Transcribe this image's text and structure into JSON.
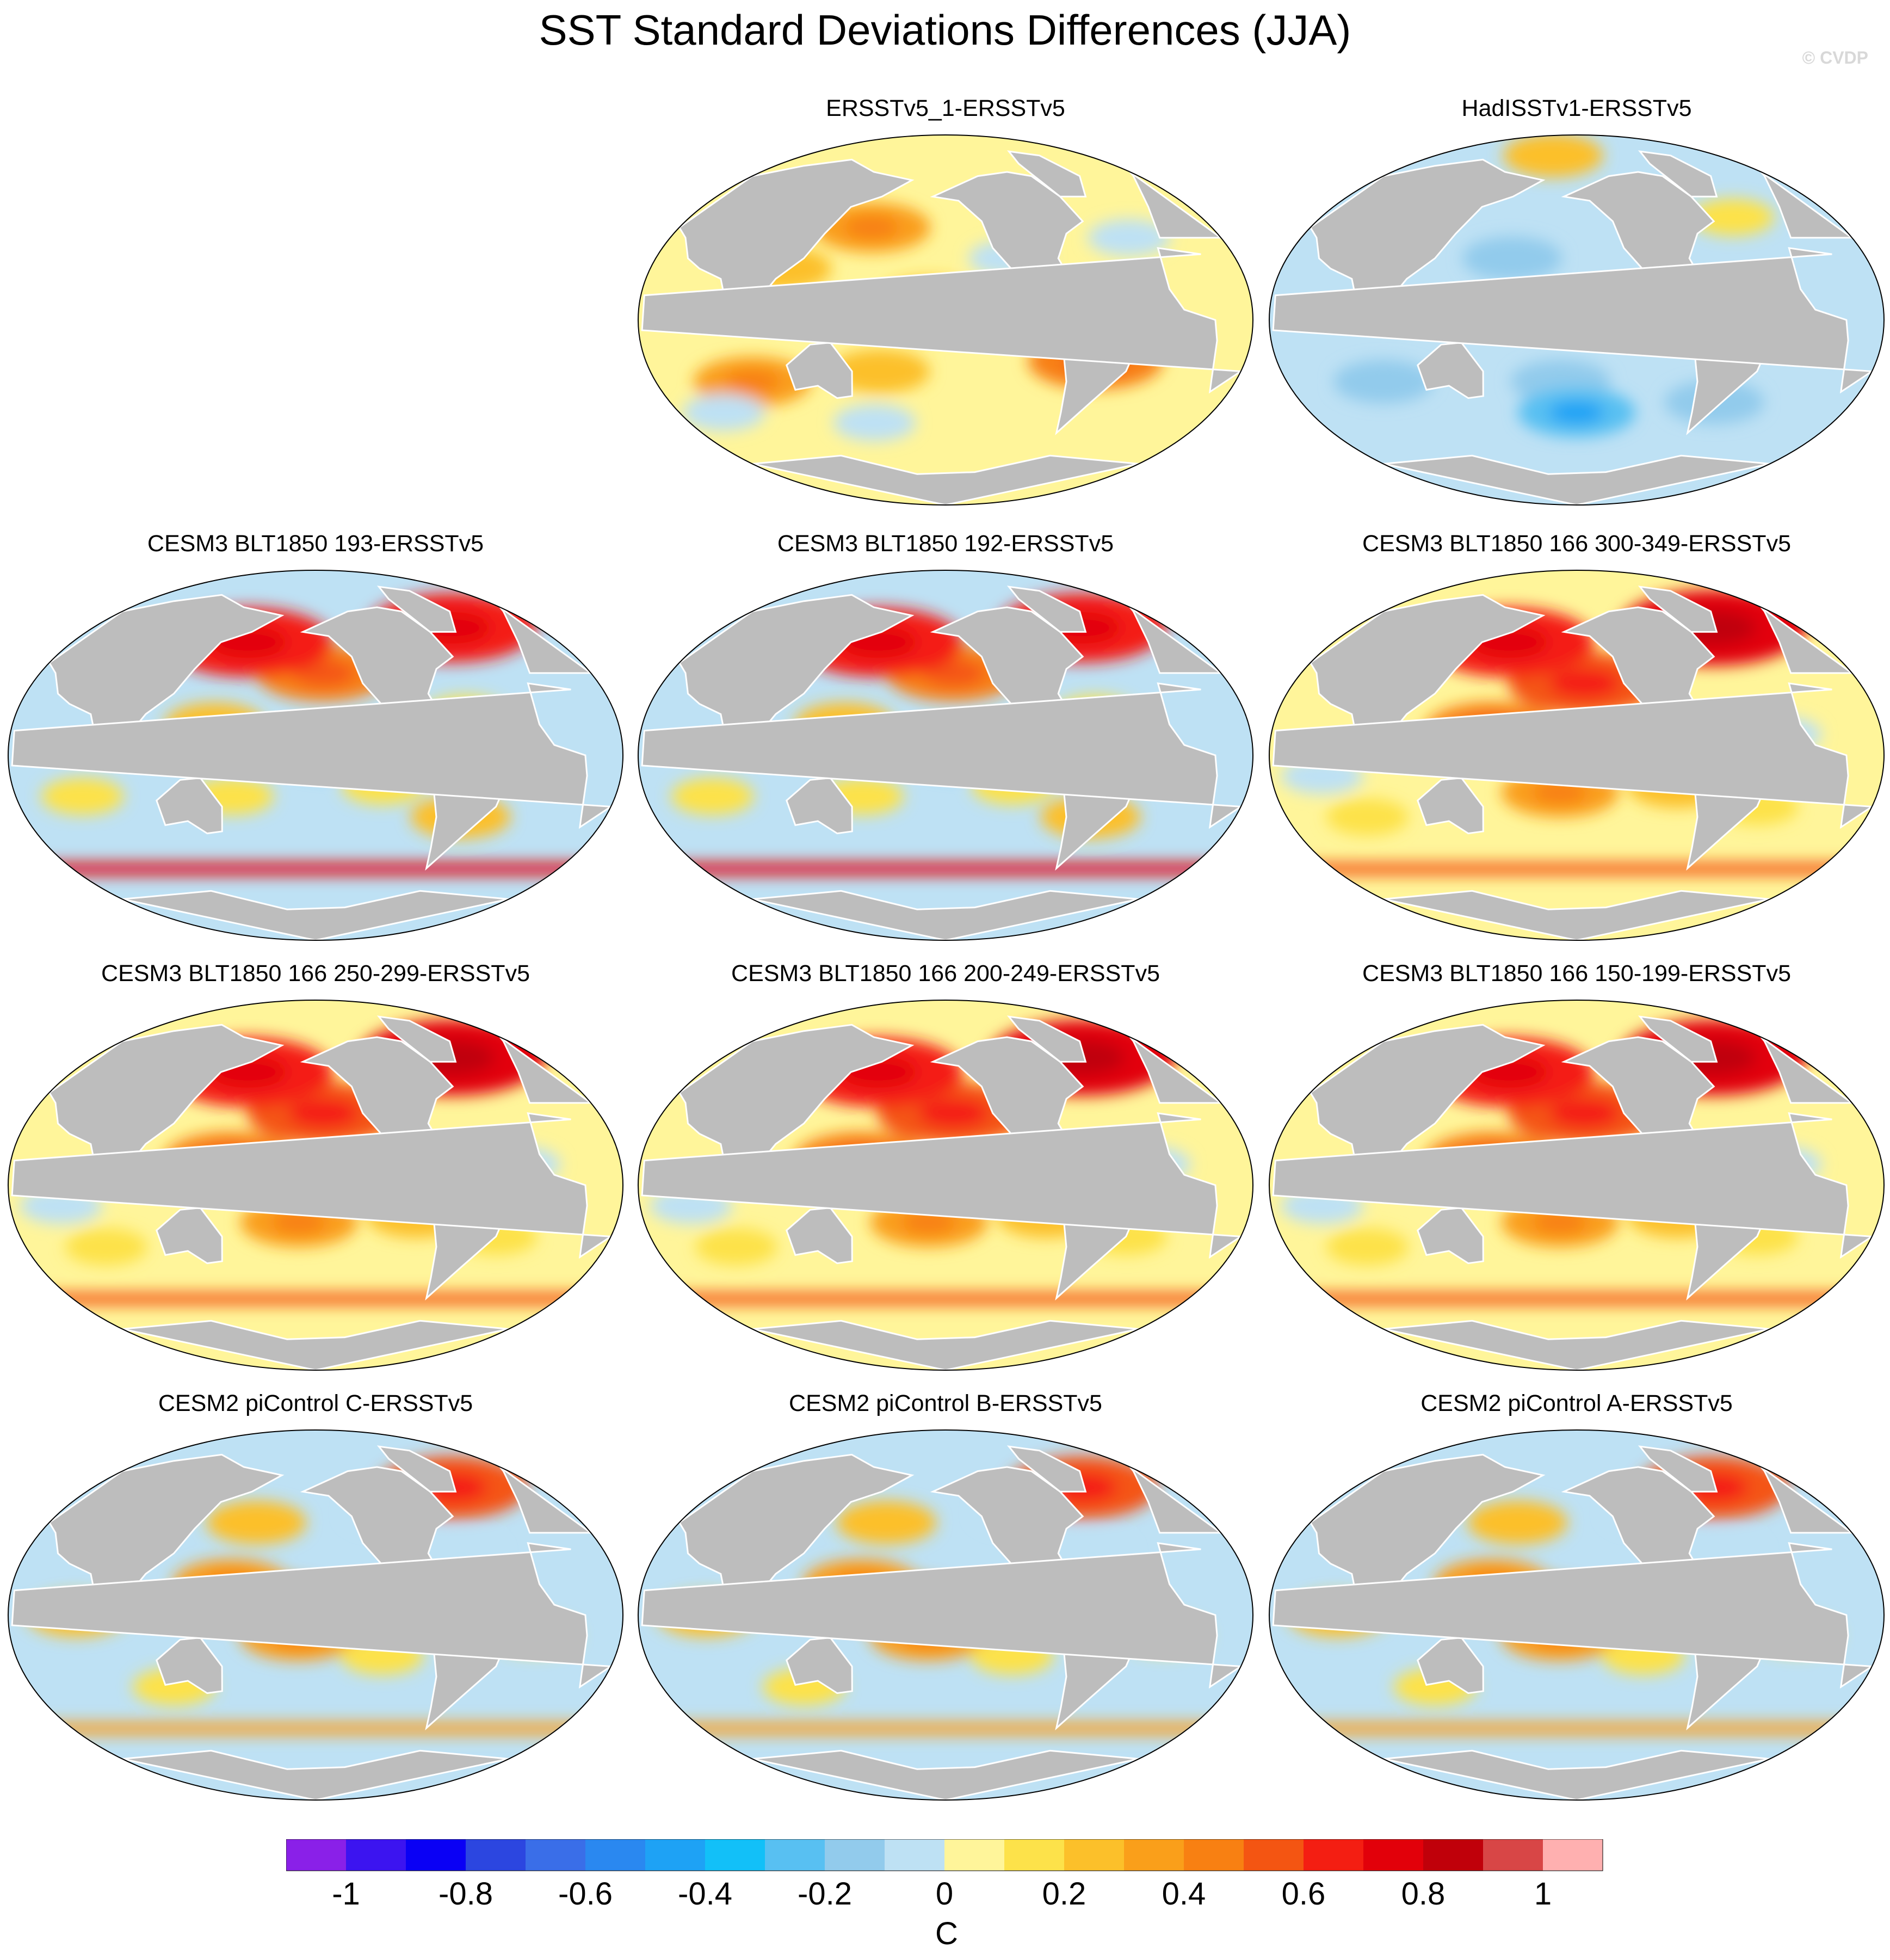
{
  "title": "SST Standard Deviations Differences (JJA)",
  "copyright": "© CVDP",
  "panels": [
    {
      "label": "ERSSTv5_1-ERSSTv5",
      "pattern": "obs1"
    },
    {
      "label": "HadISSTv1-ERSSTv5",
      "pattern": "obs2"
    },
    {
      "label": "CESM3 BLT1850 193-ERSSTv5",
      "pattern": "blt"
    },
    {
      "label": "CESM3 BLT1850 192-ERSSTv5",
      "pattern": "blt"
    },
    {
      "label": "CESM3 BLT1850 166 300-349-ERSSTv5",
      "pattern": "blt166"
    },
    {
      "label": "CESM3 BLT1850 166 250-299-ERSSTv5",
      "pattern": "blt166"
    },
    {
      "label": "CESM3 BLT1850 166 200-249-ERSSTv5",
      "pattern": "blt166"
    },
    {
      "label": "CESM3 BLT1850 166 150-199-ERSSTv5",
      "pattern": "blt166"
    },
    {
      "label": "CESM2 piControl C-ERSSTv5",
      "pattern": "cesm2"
    },
    {
      "label": "CESM2 piControl B-ERSSTv5",
      "pattern": "cesm2"
    },
    {
      "label": "CESM2 piControl A-ERSSTv5",
      "pattern": "cesm2"
    }
  ],
  "chart_data": {
    "type": "heatmap",
    "title": "SST Standard Deviations Differences (JJA)",
    "units": "C",
    "colorbar": {
      "levels": [
        -1,
        -0.9,
        -0.8,
        -0.7,
        -0.6,
        -0.5,
        -0.4,
        -0.3,
        -0.2,
        -0.1,
        0,
        0.1,
        0.2,
        0.3,
        0.4,
        0.5,
        0.6,
        0.7,
        0.8,
        0.9,
        1
      ],
      "tick_labels": [
        "-1",
        "-0.8",
        "-0.6",
        "-0.4",
        "-0.2",
        "0",
        "0.2",
        "0.4",
        "0.6",
        "0.8",
        "1"
      ],
      "tick_values": [
        -1,
        -0.8,
        -0.6,
        -0.4,
        -0.2,
        0,
        0.2,
        0.4,
        0.6,
        0.8,
        1
      ],
      "colors": [
        "#8a20e8",
        "#3c14f0",
        "#0a00f5",
        "#2c46e0",
        "#3a6ee8",
        "#2a88f0",
        "#1ea2f5",
        "#12c0f8",
        "#58c0f2",
        "#92cbec",
        "#bee1f4",
        "#fff59a",
        "#fde24a",
        "#fcc02a",
        "#fa9f1a",
        "#f88012",
        "#f45512",
        "#f41e12",
        "#e2000a",
        "#c0000a",
        "#d84646",
        "#ffb0b0"
      ],
      "label": "C"
    },
    "patterns": {
      "obs1": {
        "base": "#fff59a",
        "blobs": [
          {
            "lon": 160,
            "lat": 45,
            "v": 0.3
          },
          {
            "lon": 200,
            "lat": 10,
            "v": 0.2
          },
          {
            "lon": 90,
            "lat": -30,
            "v": 0.3
          },
          {
            "lon": 300,
            "lat": -20,
            "v": 0.4
          },
          {
            "lon": 250,
            "lat": 30,
            "v": -0.1
          },
          {
            "lon": 110,
            "lat": 25,
            "v": 0.2
          },
          {
            "lon": 170,
            "lat": -25,
            "v": 0.2
          },
          {
            "lon": 200,
            "lat": 0,
            "v": 0.1
          },
          {
            "lon": 60,
            "lat": -45,
            "v": -0.1
          },
          {
            "lon": 280,
            "lat": 0,
            "v": -0.1
          },
          {
            "lon": 160,
            "lat": -50,
            "v": -0.1
          },
          {
            "lon": 330,
            "lat": 40,
            "v": -0.1
          }
        ]
      },
      "obs2": {
        "base": "#bee1f4",
        "blobs": [
          {
            "lon": 200,
            "lat": -30,
            "v": -0.2
          },
          {
            "lon": 90,
            "lat": -30,
            "v": -0.2
          },
          {
            "lon": 170,
            "lat": 30,
            "v": -0.2
          },
          {
            "lon": 260,
            "lat": 0,
            "v": 0.1
          },
          {
            "lon": 320,
            "lat": 50,
            "v": 0.1
          },
          {
            "lon": 210,
            "lat": -45,
            "v": -0.3
          },
          {
            "lon": 300,
            "lat": -40,
            "v": -0.2
          },
          {
            "lon": 180,
            "lat": 80,
            "v": 0.2
          }
        ]
      },
      "blt": {
        "base": "#bee1f4",
        "blobs": [
          {
            "lon": 215,
            "lat": 40,
            "v": 0.4
          },
          {
            "lon": 160,
            "lat": 55,
            "v": 0.6
          },
          {
            "lon": 320,
            "lat": 62,
            "v": 0.6
          },
          {
            "lon": 220,
            "lat": 2,
            "v": -0.3
          },
          {
            "lon": 150,
            "lat": 15,
            "v": 0.2
          },
          {
            "lon": 250,
            "lat": -15,
            "v": 0.1
          },
          {
            "lon": 160,
            "lat": -20,
            "v": 0.1
          },
          {
            "lon": 300,
            "lat": 20,
            "v": 0.1
          },
          {
            "lon": 70,
            "lat": -20,
            "v": 0.1
          },
          {
            "lon": 300,
            "lat": -30,
            "v": 0.2
          }
        ],
        "southern_band": 0.7
      },
      "blt166": {
        "base": "#fff59a",
        "blobs": [
          {
            "lon": 215,
            "lat": 35,
            "v": 0.5
          },
          {
            "lon": 160,
            "lat": 55,
            "v": 0.6
          },
          {
            "lon": 320,
            "lat": 62,
            "v": 0.7
          },
          {
            "lon": 220,
            "lat": 2,
            "v": -0.3
          },
          {
            "lon": 160,
            "lat": 12,
            "v": 0.4
          },
          {
            "lon": 200,
            "lat": -18,
            "v": 0.3
          },
          {
            "lon": 270,
            "lat": -15,
            "v": 0.2
          },
          {
            "lon": 80,
            "lat": -30,
            "v": 0.1
          },
          {
            "lon": 330,
            "lat": 10,
            "v": -0.1
          },
          {
            "lon": 60,
            "lat": -10,
            "v": -0.1
          },
          {
            "lon": 320,
            "lat": -25,
            "v": 0.1
          }
        ],
        "southern_band": 0.5
      },
      "cesm2": {
        "base": "#bee1f4",
        "blobs": [
          {
            "lon": 185,
            "lat": 5,
            "v": 0.4
          },
          {
            "lon": 160,
            "lat": 15,
            "v": 0.3
          },
          {
            "lon": 200,
            "lat": -10,
            "v": 0.3
          },
          {
            "lon": 70,
            "lat": 0,
            "v": 0.2
          },
          {
            "lon": 170,
            "lat": 45,
            "v": 0.2
          },
          {
            "lon": 250,
            "lat": -20,
            "v": 0.1
          },
          {
            "lon": 300,
            "lat": 30,
            "v": -0.1
          },
          {
            "lon": 320,
            "lat": 62,
            "v": 0.5
          },
          {
            "lon": 260,
            "lat": 50,
            "v": -0.1
          },
          {
            "lon": 340,
            "lat": -10,
            "v": 0.1
          },
          {
            "lon": 120,
            "lat": -35,
            "v": 0.1
          }
        ],
        "southern_band": 0.3
      }
    }
  }
}
